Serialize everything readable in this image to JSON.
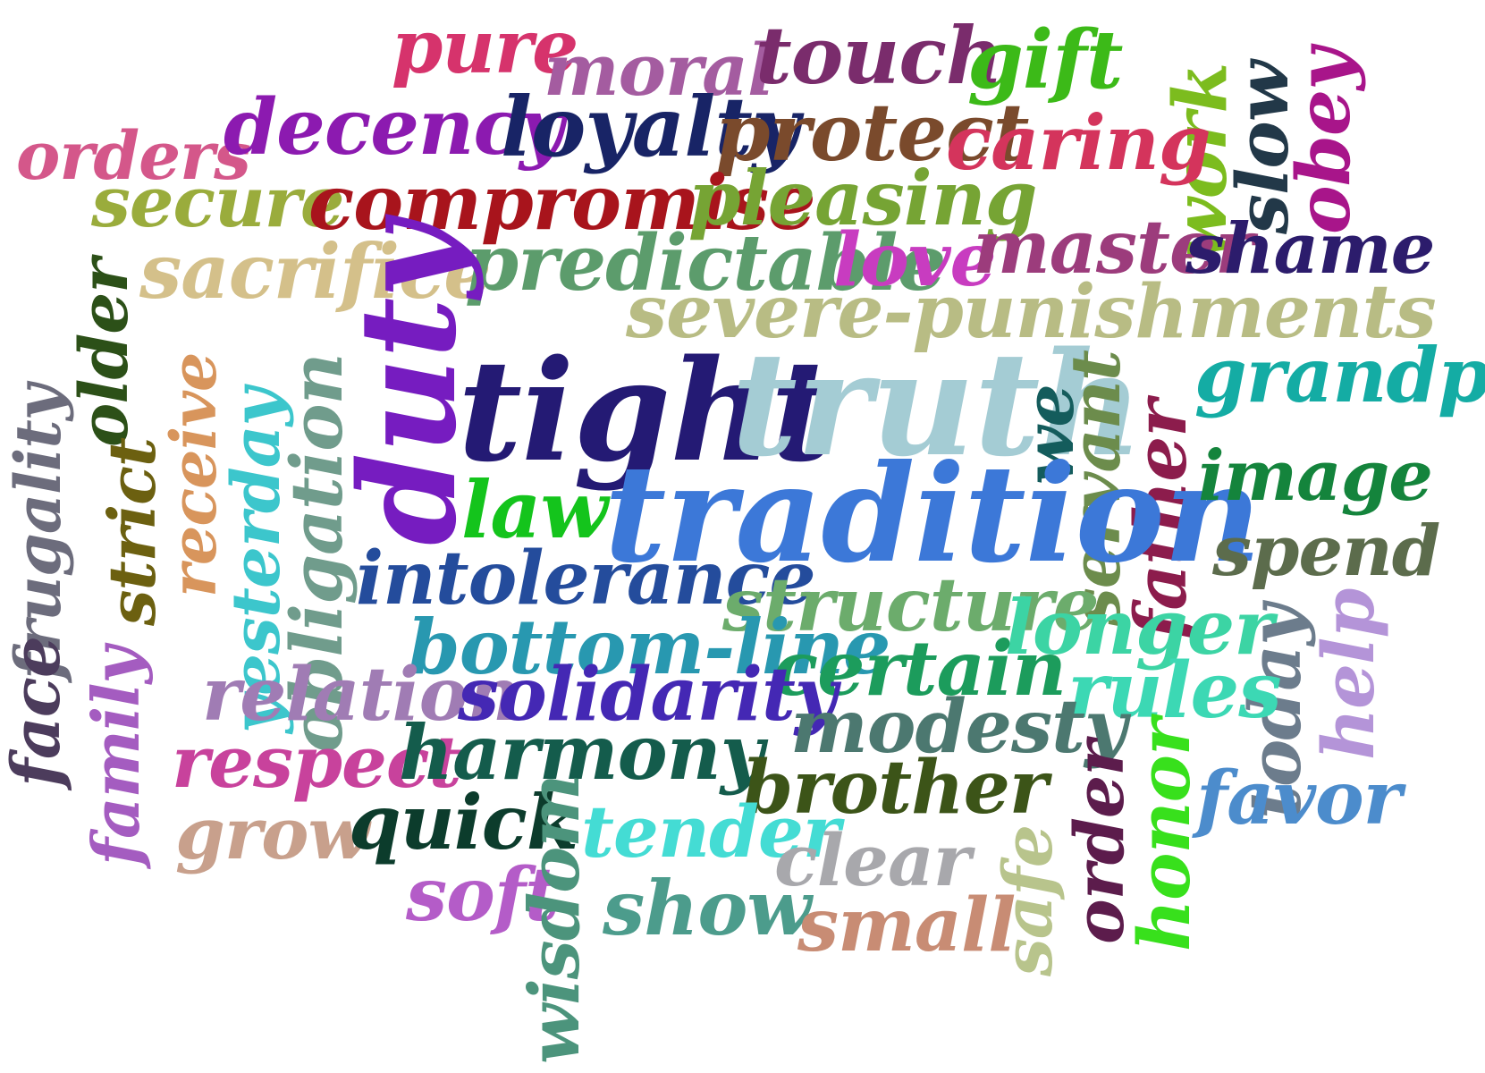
{
  "words": [
    {
      "text": "pure",
      "color": "#d6336c"
    },
    {
      "text": "moral",
      "color": "#a45ca0"
    },
    {
      "text": "touch",
      "color": "#7a2c6c"
    },
    {
      "text": "gift",
      "color": "#3cba18"
    },
    {
      "text": "work",
      "color": "#7cbc1e"
    },
    {
      "text": "slow",
      "color": "#223848"
    },
    {
      "text": "obey",
      "color": "#a8158a"
    },
    {
      "text": "orders",
      "color": "#d4578a"
    },
    {
      "text": "decency",
      "color": "#8c1ab0"
    },
    {
      "text": "loyalty",
      "color": "#182466"
    },
    {
      "text": "protect",
      "color": "#7a4a2c"
    },
    {
      "text": "caring",
      "color": "#d4345c"
    },
    {
      "text": "secure",
      "color": "#9aac3c"
    },
    {
      "text": "compromise",
      "color": "#a8141c"
    },
    {
      "text": "pleasing",
      "color": "#76a434"
    },
    {
      "text": "sacrifice",
      "color": "#d4c08a"
    },
    {
      "text": "predictable",
      "color": "#5c9c6c"
    },
    {
      "text": "love",
      "color": "#c83cc0"
    },
    {
      "text": "master",
      "color": "#9c3c7c"
    },
    {
      "text": "shame",
      "color": "#2c1c6c"
    },
    {
      "text": "severe-punishments",
      "color": "#b8bc84"
    },
    {
      "text": "older",
      "color": "#2c5018"
    },
    {
      "text": "duty",
      "color": "#761cc0"
    },
    {
      "text": "tight",
      "color": "#241a74"
    },
    {
      "text": "truth",
      "color": "#a4ccd4"
    },
    {
      "text": "we",
      "color": "#145c5c"
    },
    {
      "text": "servant",
      "color": "#6c8c4c"
    },
    {
      "text": "father",
      "color": "#8c1c4c"
    },
    {
      "text": "grandparents",
      "color": "#14aca4"
    },
    {
      "text": "receive",
      "color": "#d8955c"
    },
    {
      "text": "yesterday",
      "color": "#3cc6cc"
    },
    {
      "text": "obligation",
      "color": "#709c8c"
    },
    {
      "text": "strict",
      "color": "#6c6010"
    },
    {
      "text": "frugality",
      "color": "#6c6c7c"
    },
    {
      "text": "law",
      "color": "#14c41c"
    },
    {
      "text": "tradition",
      "color": "#3c78d8"
    },
    {
      "text": "image",
      "color": "#14843c"
    },
    {
      "text": "spend",
      "color": "#5c6c4c"
    },
    {
      "text": "intolerance",
      "color": "#244c9c"
    },
    {
      "text": "structure",
      "color": "#6cac6c"
    },
    {
      "text": "longer",
      "color": "#3cd4a4"
    },
    {
      "text": "today",
      "color": "#6c7c8c"
    },
    {
      "text": "help",
      "color": "#b494d8"
    },
    {
      "text": "bottom-line",
      "color": "#2898b0"
    },
    {
      "text": "certain",
      "color": "#1c9c5c"
    },
    {
      "text": "rules",
      "color": "#3cd8b4"
    },
    {
      "text": "relation",
      "color": "#a07cb4"
    },
    {
      "text": "solidarity",
      "color": "#4428b4"
    },
    {
      "text": "modesty",
      "color": "#4c7870"
    },
    {
      "text": "face",
      "color": "#4c3c5c"
    },
    {
      "text": "family",
      "color": "#a45cc0"
    },
    {
      "text": "respect",
      "color": "#c8429c"
    },
    {
      "text": "harmony",
      "color": "#145c4c"
    },
    {
      "text": "brother",
      "color": "#3c5418"
    },
    {
      "text": "order",
      "color": "#5c1c4c"
    },
    {
      "text": "honor",
      "color": "#38e01c"
    },
    {
      "text": "favor",
      "color": "#4c8ccc"
    },
    {
      "text": "grow",
      "color": "#c8a08c"
    },
    {
      "text": "quick",
      "color": "#0c3c2c"
    },
    {
      "text": "tender",
      "color": "#44dcd4"
    },
    {
      "text": "clear",
      "color": "#a8a8ac"
    },
    {
      "text": "safe",
      "color": "#b8c48c"
    },
    {
      "text": "soft",
      "color": "#b45cc8"
    },
    {
      "text": "wisdom",
      "color": "#4c947c"
    },
    {
      "text": "show",
      "color": "#4c9c8c"
    },
    {
      "text": "small",
      "color": "#c88c74"
    }
  ]
}
